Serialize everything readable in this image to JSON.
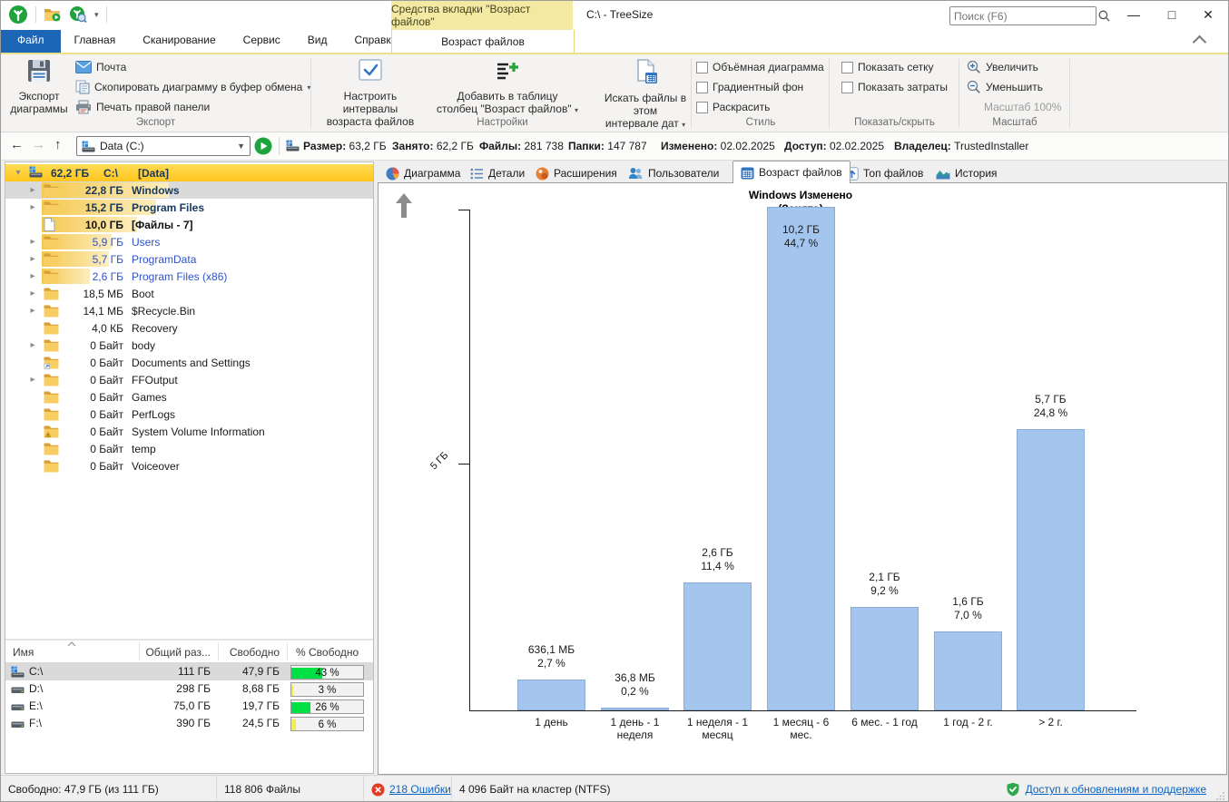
{
  "window": {
    "title": "C:\\ - TreeSize",
    "contextual_header": "Средства вкладки \"Возраст файлов\"",
    "search_placeholder": "Поиск (F6)"
  },
  "menu": {
    "file_tab": "Файл",
    "tabs": [
      "Главная",
      "Сканирование",
      "Сервис",
      "Вид",
      "Справка"
    ],
    "contextual_tab": "Возраст файлов"
  },
  "ribbon": {
    "export": {
      "group_label": "Экспорт",
      "big_label": "Экспорт\nдиаграммы",
      "items": [
        {
          "label": "Почта",
          "icon": "mail",
          "dropdown": false
        },
        {
          "label": "Скопировать диаграмму в буфер обмена",
          "icon": "copy",
          "dropdown": true
        },
        {
          "label": "Печать правой панели",
          "icon": "printer",
          "dropdown": false
        }
      ]
    },
    "settings": {
      "group_label": "Настройки",
      "buttons": [
        {
          "label": "Настроить интервалы\nвозраста файлов",
          "icon": "intervals",
          "dropdown": false
        },
        {
          "label": "Добавить в таблицу\nстолбец \"Возраст файлов\"",
          "icon": "addcolumn",
          "dropdown": true
        },
        {
          "label": "Искать файлы в этом\nинтервале дат",
          "icon": "finddates",
          "dropdown": true
        }
      ]
    },
    "style": {
      "group_label": "Стиль",
      "checkboxes": [
        "Объёмная диаграмма",
        "Градиентный фон",
        "Раскрасить"
      ]
    },
    "show": {
      "group_label": "Показать/скрыть",
      "checkboxes": [
        "Показать сетку",
        "Показать затраты"
      ]
    },
    "zoom": {
      "group_label": "Масштаб",
      "items": [
        {
          "label": "Увеличить",
          "icon": "zoomin",
          "disabled": false
        },
        {
          "label": "Уменьшить",
          "icon": "zoomout",
          "disabled": false
        },
        {
          "label": "Масштаб 100%",
          "icon": "",
          "disabled": true
        }
      ]
    }
  },
  "toolbar": {
    "address_value": "Data (C:)",
    "stats": [
      {
        "label": "Размер:",
        "value": "63,2 ГБ"
      },
      {
        "label": "Занято:",
        "value": "62,2 ГБ"
      },
      {
        "label": "Файлы:",
        "value": "281 738"
      },
      {
        "label": "Папки:",
        "value": "147 787"
      },
      {
        "label": "Изменено:",
        "value": "02.02.2025"
      },
      {
        "label": "Доступ:",
        "value": "02.02.2025"
      },
      {
        "label": "Владелец:",
        "value": "TrustedInstaller"
      }
    ]
  },
  "tree": {
    "root": {
      "size": "62,2 ГБ",
      "name": "C:\\",
      "label": "[Data]"
    },
    "items": [
      {
        "size": "22,8 ГБ",
        "name": "Windows",
        "icon": "folder",
        "chevron": true,
        "style": "bold-navy",
        "bar": 0.4,
        "selected": true
      },
      {
        "size": "15,2 ГБ",
        "name": "Program Files",
        "icon": "folder",
        "chevron": true,
        "style": "bold-navy",
        "bar": 0.36,
        "selected": false
      },
      {
        "size": "10,0 ГБ",
        "name": "[Файлы - 7]",
        "icon": "file",
        "chevron": false,
        "style": "bold-dark",
        "bar": 0.3,
        "selected": false
      },
      {
        "size": "5,9 ГБ",
        "name": "Users",
        "icon": "folder",
        "chevron": true,
        "style": "blue",
        "bar": 0.22,
        "selected": false
      },
      {
        "size": "5,7 ГБ",
        "name": "ProgramData",
        "icon": "folder",
        "chevron": true,
        "style": "blue",
        "bar": 0.21,
        "selected": false
      },
      {
        "size": "2,6 ГБ",
        "name": "Program Files (x86)",
        "icon": "folder",
        "chevron": true,
        "style": "blue",
        "bar": 0.15,
        "selected": false
      },
      {
        "size": "18,5 МБ",
        "name": "Boot",
        "icon": "folder",
        "chevron": true,
        "style": "normal",
        "bar": 0,
        "selected": false
      },
      {
        "size": "14,1 МБ",
        "name": "$Recycle.Bin",
        "icon": "folder",
        "chevron": true,
        "style": "normal",
        "bar": 0,
        "selected": false
      },
      {
        "size": "4,0 КБ",
        "name": "Recovery",
        "icon": "folder",
        "chevron": false,
        "style": "normal",
        "bar": 0,
        "selected": false
      },
      {
        "size": "0 Байт",
        "name": "body",
        "icon": "folder",
        "chevron": true,
        "style": "normal",
        "bar": 0,
        "selected": false
      },
      {
        "size": "0 Байт",
        "name": "Documents and Settings",
        "icon": "folder-link",
        "chevron": false,
        "style": "normal",
        "bar": 0,
        "selected": false
      },
      {
        "size": "0 Байт",
        "name": "FFOutput",
        "icon": "folder",
        "chevron": true,
        "style": "normal",
        "bar": 0,
        "selected": false
      },
      {
        "size": "0 Байт",
        "name": "Games",
        "icon": "folder",
        "chevron": false,
        "style": "normal",
        "bar": 0,
        "selected": false
      },
      {
        "size": "0 Байт",
        "name": "PerfLogs",
        "icon": "folder",
        "chevron": false,
        "style": "normal",
        "bar": 0,
        "selected": false
      },
      {
        "size": "0 Байт",
        "name": "System Volume Information",
        "icon": "folder-warn",
        "chevron": false,
        "style": "normal",
        "bar": 0,
        "selected": false
      },
      {
        "size": "0 Байт",
        "name": "temp",
        "icon": "folder",
        "chevron": false,
        "style": "normal",
        "bar": 0,
        "selected": false
      },
      {
        "size": "0 Байт",
        "name": "Voiceover",
        "icon": "folder",
        "chevron": false,
        "style": "normal",
        "bar": 0,
        "selected": false
      }
    ]
  },
  "drives": {
    "columns": [
      "Имя",
      "Общий раз...",
      "Свободно",
      "% Свободно"
    ],
    "rows": [
      {
        "name": "C:\\",
        "icon": "drive-c",
        "total": "111 ГБ",
        "free": "47,9 ГБ",
        "pct": "43 %",
        "pct_value": 43,
        "fill": "#00e045",
        "selected": true
      },
      {
        "name": "D:\\",
        "icon": "drive",
        "total": "298 ГБ",
        "free": "8,68 ГБ",
        "pct": "3 %",
        "pct_value": 3,
        "fill": "#f6ef42",
        "selected": false
      },
      {
        "name": "E:\\",
        "icon": "drive",
        "total": "75,0 ГБ",
        "free": "19,7 ГБ",
        "pct": "26 %",
        "pct_value": 26,
        "fill": "#00e045",
        "selected": false
      },
      {
        "name": "F:\\",
        "icon": "drive",
        "total": "390 ГБ",
        "free": "24,5 ГБ",
        "pct": "6 %",
        "pct_value": 6,
        "fill": "#f6ef42",
        "selected": false
      }
    ]
  },
  "right_tabs": [
    {
      "label": "Диаграмма",
      "icon": "pie",
      "active": false
    },
    {
      "label": "Детали",
      "icon": "details",
      "active": false
    },
    {
      "label": "Расширения",
      "icon": "extensions",
      "active": false
    },
    {
      "label": "Пользователи",
      "icon": "users",
      "active": false
    },
    {
      "label": "Возраст файлов",
      "icon": "calendar",
      "active": true
    },
    {
      "label": "Топ файлов",
      "icon": "topfiles",
      "active": false
    },
    {
      "label": "История",
      "icon": "history",
      "active": false
    }
  ],
  "chart_data": {
    "type": "bar",
    "title": "Windows Изменено\n(Занято)",
    "ylabel_tick": "5 ГБ",
    "ylabel_tick_gb": 5,
    "grid": false,
    "bar_color": "#a4c6ee",
    "bar_border": "#89abd6",
    "categories": [
      "1 день",
      "1 день - 1\nнеделя",
      "1 неделя - 1\nмесяц",
      "1 месяц - 6\nмес.",
      "6 мес. - 1 год",
      "1 год - 2 г.",
      "> 2 г."
    ],
    "bars": [
      {
        "category": "1 день",
        "size_label": "636,1 МБ",
        "pct_label": "2,7 %",
        "value_gb": 0.621
      },
      {
        "category": "1 день - 1\nнеделя",
        "size_label": "36,8 МБ",
        "pct_label": "0,2 %",
        "value_gb": 0.036
      },
      {
        "category": "1 неделя - 1\nмесяц",
        "size_label": "2,6 ГБ",
        "pct_label": "11,4 %",
        "value_gb": 2.6
      },
      {
        "category": "1 месяц - 6\nмес.",
        "size_label": "10,2 ГБ",
        "pct_label": "44,7 %",
        "value_gb": 10.2
      },
      {
        "category": "6 мес. - 1 год",
        "size_label": "2,1 ГБ",
        "pct_label": "9,2 %",
        "value_gb": 2.1
      },
      {
        "category": "1 год - 2 г.",
        "size_label": "1,6 ГБ",
        "pct_label": "7,0 %",
        "value_gb": 1.6
      },
      {
        "category": "> 2 г.",
        "size_label": "5,7 ГБ",
        "pct_label": "24,8 %",
        "value_gb": 5.7
      }
    ]
  },
  "statusbar": {
    "free": "Свободно: 47,9 ГБ  (из 111 ГБ)",
    "files": "118 806 Файлы",
    "errors": "218 Ошибки",
    "cluster": "4 096 Байт на кластер (NTFS)",
    "update": "Доступ к обновлениям и поддержке"
  }
}
